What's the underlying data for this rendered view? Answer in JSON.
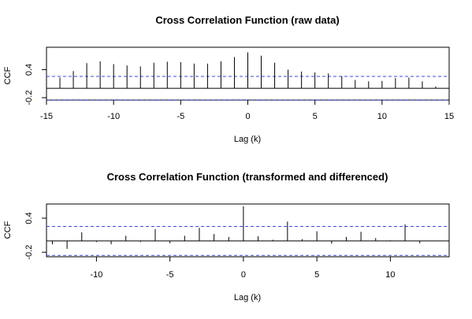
{
  "chart_data": [
    {
      "type": "bar",
      "title": "Cross Correlation Function (raw data)",
      "xlabel": "Lag (k)",
      "ylabel": "CCF",
      "xlim": [
        -15,
        15
      ],
      "ylim": [
        -0.25,
        0.88
      ],
      "xticks": [
        "-15",
        "-10",
        "-5",
        "0",
        "5",
        "10",
        "15"
      ],
      "xtick_values": [
        -15,
        -10,
        -5,
        0,
        5,
        10,
        15
      ],
      "yticks": [
        "-0.2",
        "0.4"
      ],
      "ytick_values": [
        -0.2,
        0.4
      ],
      "confidence_band": [
        -0.255,
        0.255
      ],
      "lags": [
        -14,
        -13,
        -12,
        -11,
        -10,
        -9,
        -8,
        -7,
        -6,
        -5,
        -4,
        -3,
        -2,
        -1,
        0,
        1,
        2,
        3,
        4,
        5,
        6,
        7,
        8,
        9,
        10,
        11,
        12,
        13,
        14
      ],
      "values": [
        0.23,
        0.37,
        0.54,
        0.58,
        0.52,
        0.49,
        0.47,
        0.55,
        0.57,
        0.56,
        0.53,
        0.53,
        0.58,
        0.67,
        0.77,
        0.7,
        0.55,
        0.4,
        0.36,
        0.34,
        0.32,
        0.26,
        0.18,
        0.15,
        0.16,
        0.22,
        0.23,
        0.15,
        0.04
      ],
      "grid": false
    },
    {
      "type": "bar",
      "title": "Cross Correlation Function (transformed and differenced)",
      "xlabel": "Lag (k)",
      "ylabel": "CCF",
      "xlim": [
        -13.4,
        14.0
      ],
      "ylim": [
        -0.28,
        0.65
      ],
      "xticks": [
        "-10",
        "-5",
        "0",
        "5",
        "10"
      ],
      "xtick_values": [
        -10,
        -5,
        0,
        5,
        10
      ],
      "yticks": [
        "-0.2",
        "0.4"
      ],
      "ytick_values": [
        -0.2,
        0.4
      ],
      "confidence_band": [
        -0.255,
        0.255
      ],
      "lags": [
        -13,
        -12,
        -11,
        -10,
        -9,
        -8,
        -7,
        -6,
        -5,
        -4,
        -3,
        -2,
        -1,
        0,
        1,
        2,
        3,
        4,
        5,
        6,
        7,
        8,
        9,
        10,
        11,
        12
      ],
      "values": [
        -0.06,
        -0.14,
        0.15,
        -0.02,
        -0.06,
        0.09,
        -0.02,
        0.21,
        -0.04,
        0.09,
        0.23,
        0.12,
        0.07,
        0.61,
        0.08,
        0.02,
        0.34,
        0.03,
        0.17,
        -0.05,
        0.07,
        0.16,
        0.05,
        0.01,
        0.29,
        -0.04
      ],
      "grid": false
    }
  ]
}
